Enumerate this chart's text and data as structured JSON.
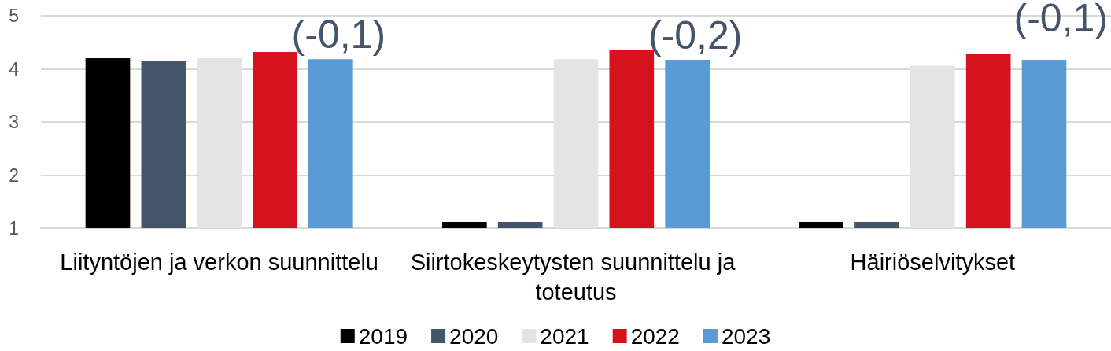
{
  "chart_data": {
    "type": "bar",
    "categories": [
      "Liityntöjen ja verkon suunnittelu",
      "Siirtokeskeytysten suunnittelu ja toteutus",
      "Häiriöselvitykset"
    ],
    "series": [
      {
        "name": "2019",
        "color": "#000000",
        "values": [
          4.2,
          1.12,
          1.12
        ]
      },
      {
        "name": "2020",
        "color": "#44546a",
        "values": [
          4.14,
          1.12,
          1.12
        ]
      },
      {
        "name": "2021",
        "color": "#e4e4e4",
        "values": [
          4.2,
          4.18,
          4.06
        ]
      },
      {
        "name": "2022",
        "color": "#d5121e",
        "values": [
          4.32,
          4.36,
          4.28
        ]
      },
      {
        "name": "2023",
        "color": "#5b9bd5",
        "values": [
          4.18,
          4.17,
          4.17
        ]
      }
    ],
    "annotations": [
      {
        "text": "(-0,1)",
        "x": "Liityntöjen ja verkon suunnittelu",
        "y": 4.18
      },
      {
        "text": "(-0,2)",
        "x": "Siirtokeskeytysten suunnittelu ja toteutus",
        "y": 4.17
      },
      "(-0,1)"
    ],
    "ylim": [
      1,
      5
    ],
    "yticks": [
      1,
      2,
      3,
      4,
      5
    ],
    "grid": "y",
    "legend": "bottom"
  }
}
